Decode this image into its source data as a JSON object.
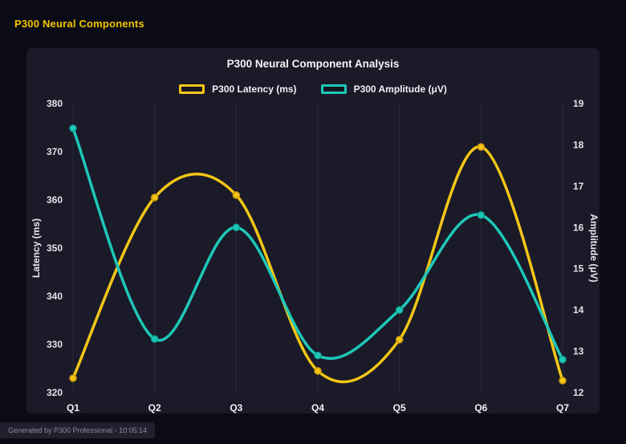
{
  "page": {
    "header": "P300 Neural Components",
    "footer": "Generated by P300 Professional - 10:05:14"
  },
  "colors": {
    "background": "#0b0b15",
    "panel": "#1a1a29",
    "header_text": "#f0c400",
    "latency_line": "#f2c616",
    "latency_marker_border": "#cf9b0a",
    "amplitude_line": "#1ec8b8",
    "amplitude_marker_border": "#12a396",
    "gridline": "rgba(255,255,255,0.08)"
  },
  "chart_data": {
    "type": "line",
    "title": "P300 Neural Component Analysis",
    "categories": [
      "Q1",
      "Q2",
      "Q3",
      "Q4",
      "Q5",
      "Q6",
      "Q7"
    ],
    "series": [
      {
        "name": "P300 Latency (ms)",
        "axis": "left",
        "color": "#f2c616",
        "marker_border": "#cf9b0a",
        "values": [
          323,
          360.5,
          361,
          324.5,
          331,
          371,
          322.5
        ]
      },
      {
        "name": "P300 Amplitude (μV)",
        "axis": "right",
        "color": "#1ec8b8",
        "marker_border": "#12a396",
        "values": [
          18.4,
          13.3,
          16.0,
          12.9,
          14.0,
          16.3,
          12.8
        ]
      }
    ],
    "left_axis": {
      "label": "Latency (ms)",
      "min": 320,
      "max": 380,
      "ticks": [
        320,
        330,
        340,
        350,
        360,
        370,
        380
      ]
    },
    "right_axis": {
      "label": "Amplitude (μV)",
      "min": 12,
      "max": 19,
      "ticks": [
        12,
        13,
        14,
        15,
        16,
        17,
        18,
        19
      ]
    },
    "grid": "vertical",
    "legend_position": "top",
    "line_smoothing": "spline"
  }
}
